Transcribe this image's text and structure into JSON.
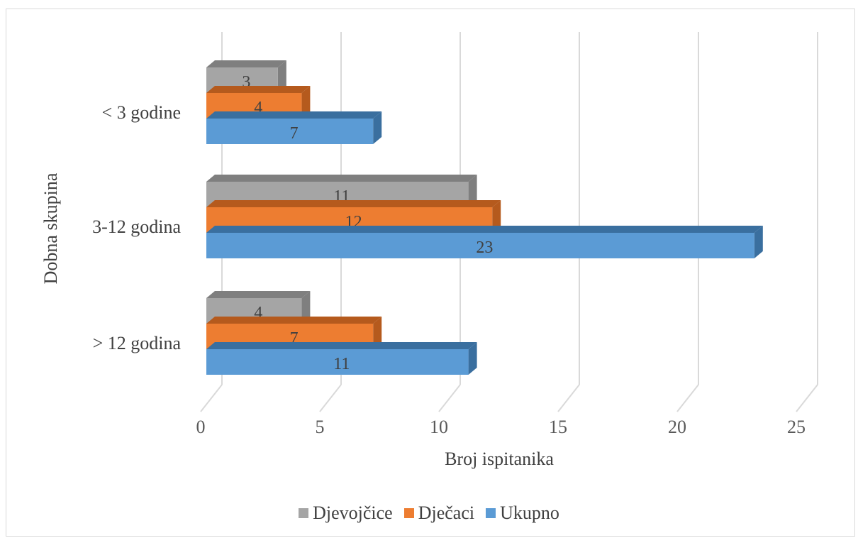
{
  "chart_data": {
    "type": "bar",
    "orientation": "horizontal",
    "categories": [
      "< 3 godine",
      "3-12 godina",
      "> 12 godina"
    ],
    "series": [
      {
        "name": "Djevojčice",
        "values": [
          3,
          11,
          4
        ],
        "color": "#a5a5a5",
        "side_color": "#7f7f7f"
      },
      {
        "name": "Dječaci",
        "values": [
          4,
          12,
          7
        ],
        "color": "#ed7d31",
        "side_color": "#b55a1d"
      },
      {
        "name": "Ukupno",
        "values": [
          7,
          23,
          11
        ],
        "color": "#5b9bd5",
        "side_color": "#3a6f9f"
      }
    ],
    "x_ticks": [
      "0",
      "5",
      "10",
      "15",
      "20",
      "25"
    ],
    "xlim": [
      0,
      25
    ],
    "xlabel": "Broj ispitanika",
    "ylabel": "Dobna skupina",
    "grid": true,
    "legend_position": "bottom"
  }
}
